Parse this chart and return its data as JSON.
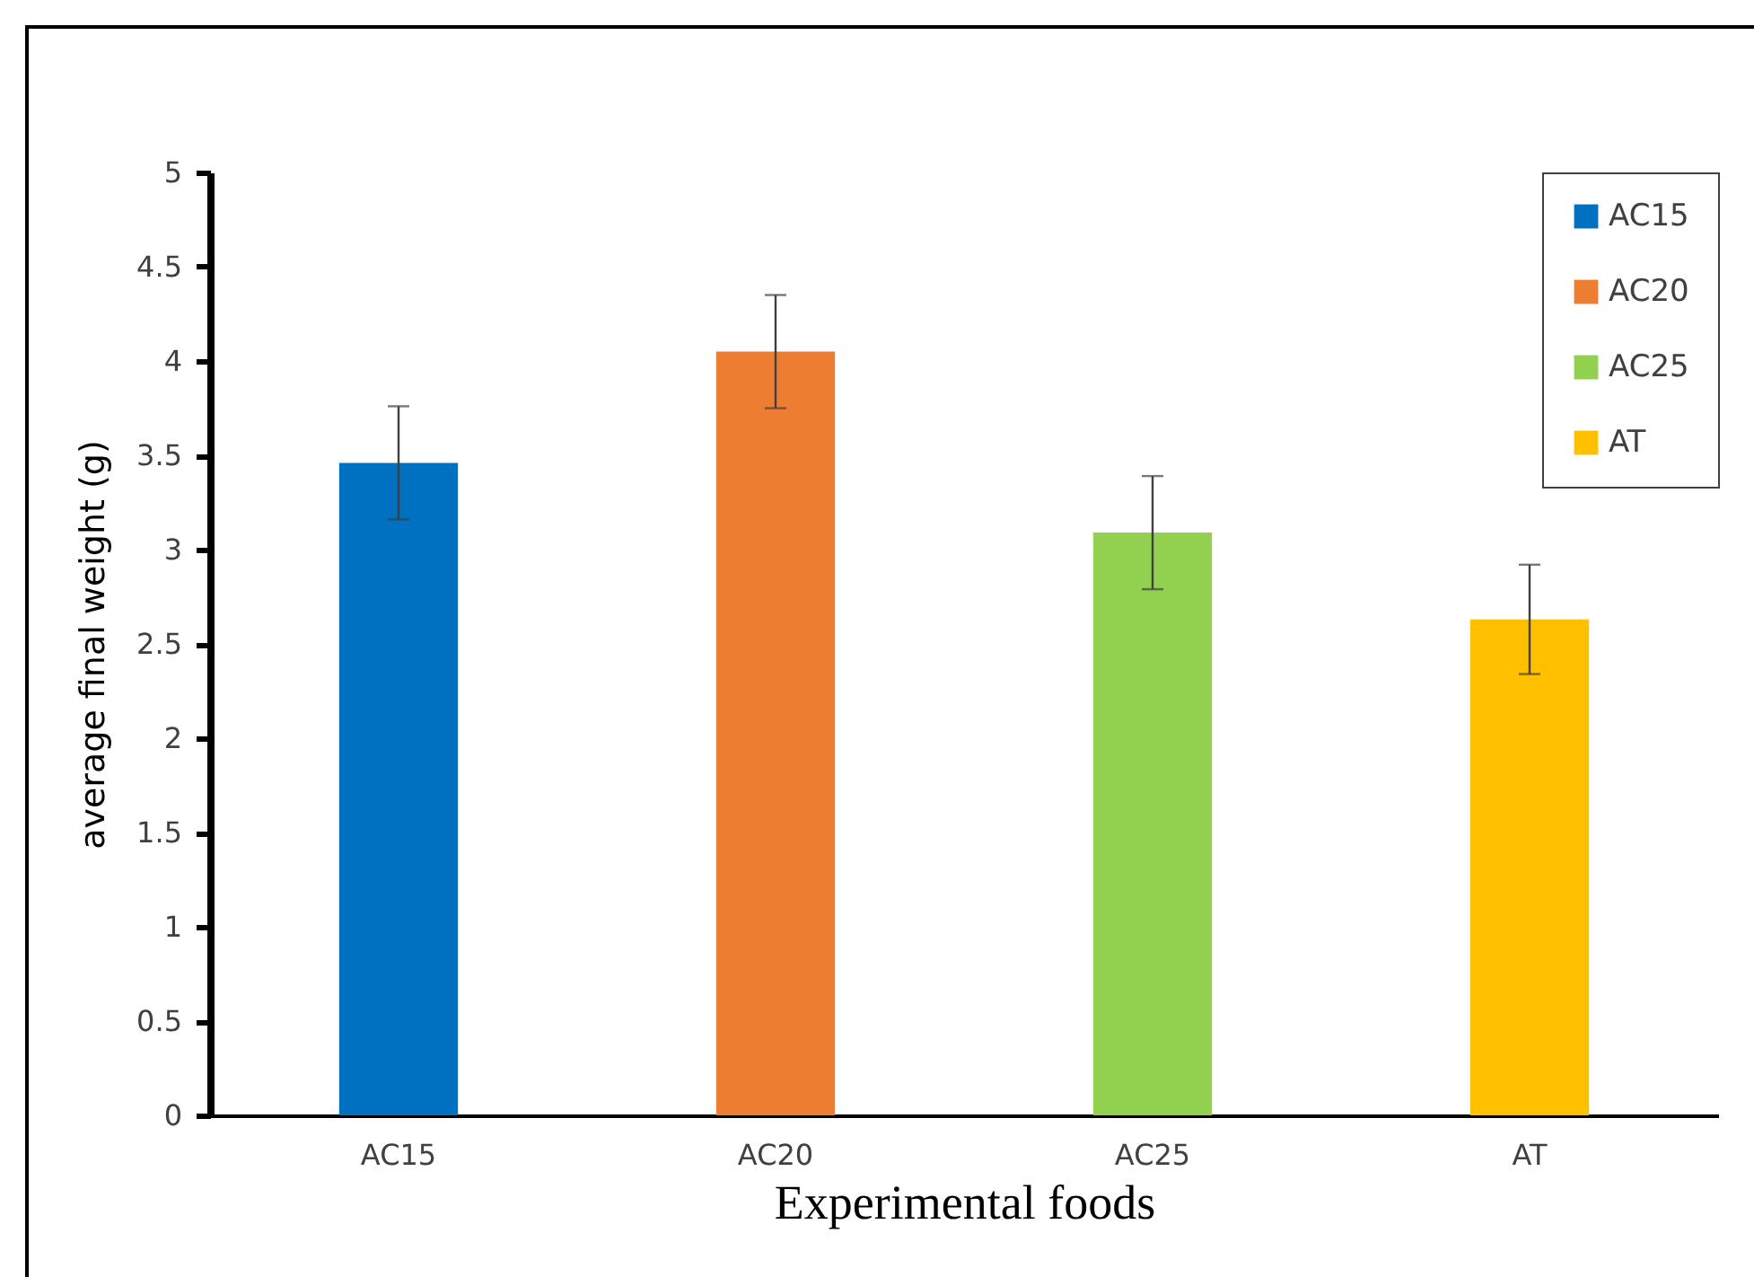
{
  "chart_data": {
    "type": "bar",
    "xlabel": "Experimental foods",
    "ylabel": "average final weight (g)",
    "categories": [
      "AC15",
      "AC20",
      "AC25",
      "AT"
    ],
    "series": [
      {
        "name": "AC15",
        "color": "#0070c0",
        "values": [
          3.46,
          null,
          null,
          null
        ],
        "errors": [
          0.3,
          null,
          null,
          null
        ]
      },
      {
        "name": "AC20",
        "color": "#ed7d31",
        "values": [
          null,
          4.05,
          null,
          null
        ],
        "errors": [
          null,
          0.3,
          null,
          null
        ]
      },
      {
        "name": "AC25",
        "color": "#92d050",
        "values": [
          null,
          null,
          3.09,
          null
        ],
        "errors": [
          null,
          null,
          0.3,
          null
        ]
      },
      {
        "name": "AT",
        "color": "#ffc000",
        "values": [
          null,
          null,
          null,
          2.63
        ],
        "errors": [
          null,
          null,
          null,
          0.29
        ]
      }
    ],
    "ylim": [
      0,
      5
    ],
    "yticks": [
      0,
      0.5,
      1,
      1.5,
      2,
      2.5,
      3,
      3.5,
      4,
      4.5,
      5
    ],
    "legend": "top right"
  }
}
